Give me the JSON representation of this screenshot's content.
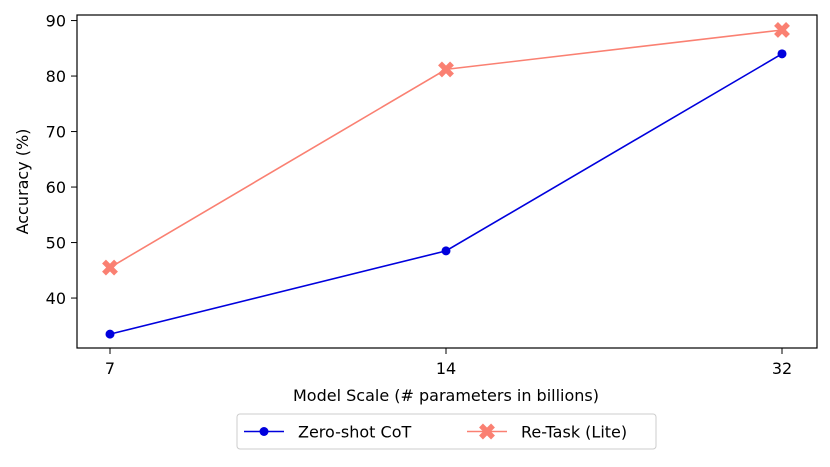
{
  "chart_data": {
    "type": "line",
    "x": [
      "7",
      "14",
      "32"
    ],
    "xlabel": "Model Scale (# parameters in billions)",
    "ylabel": "Accuracy (%)",
    "ylim": [
      31,
      91
    ],
    "yticks": [
      40,
      50,
      60,
      70,
      80,
      90
    ],
    "grid": false,
    "legend_position": "bottom-center, below plot",
    "series": [
      {
        "name": "Zero-shot CoT",
        "values": [
          33.5,
          48.5,
          84.0
        ],
        "color": "#0000dd",
        "marker": "circle"
      },
      {
        "name": "Re-Task (Lite)",
        "values": [
          45.5,
          81.2,
          88.3
        ],
        "color": "#fa8072",
        "marker": "x"
      }
    ]
  }
}
